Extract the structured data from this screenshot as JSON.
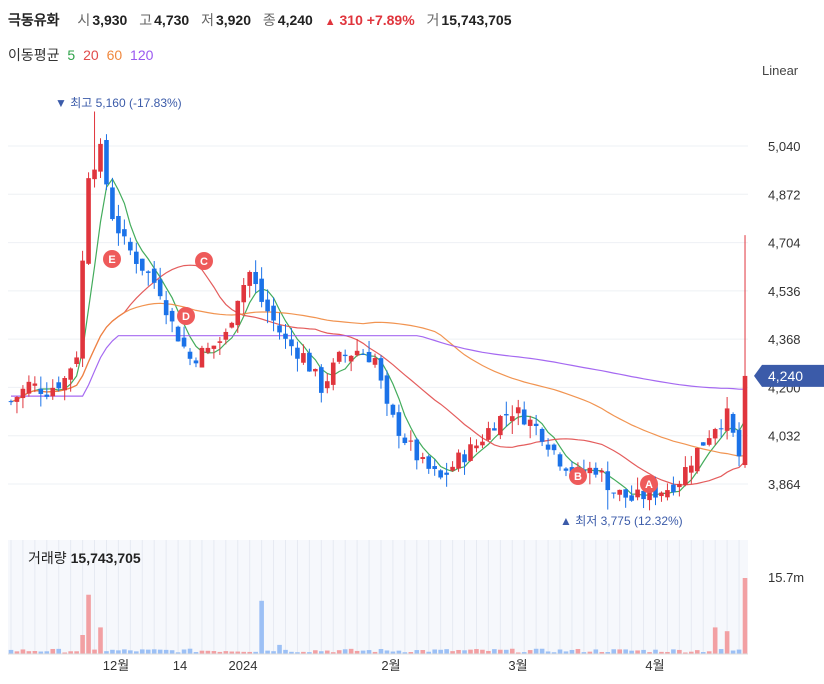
{
  "header": {
    "name": "극동유화",
    "open_label": "시",
    "open": "3,930",
    "high_label": "고",
    "high": "4,730",
    "low_label": "저",
    "low": "3,920",
    "close_label": "종",
    "close": "4,240",
    "change_arrow": "▲",
    "change": "310",
    "change_pct": "+7.89%",
    "volume_label": "거",
    "volume": "15,743,705"
  },
  "ma_legend": {
    "label": "이동평균",
    "items": [
      {
        "period": "5",
        "color": "#2fa34a"
      },
      {
        "period": "20",
        "color": "#e14b4b"
      },
      {
        "period": "60",
        "color": "#f0883e"
      },
      {
        "period": "120",
        "color": "#9b59f0"
      }
    ]
  },
  "scale_mode": "Linear",
  "colors": {
    "up": "#e0353d",
    "down": "#1b72e8",
    "price_tag": "#3b5ba9"
  },
  "annotations": {
    "high": {
      "arrow": "▼",
      "label": "최고",
      "value": "5,160 (-17.83%)"
    },
    "low": {
      "arrow": "▲",
      "label": "최저",
      "value": "3,775 (12.32%)"
    },
    "markers": [
      "E",
      "C",
      "D",
      "B",
      "A"
    ]
  },
  "volume_panel": {
    "label": "거래량",
    "value": "15,743,705",
    "axis_label": "15.7m"
  },
  "chart_data": {
    "type": "candlestick",
    "y_ticks": [
      "5,040",
      "4,872",
      "4,704",
      "4,536",
      "4,368",
      "4,200",
      "4,032",
      "3,864"
    ],
    "y_tick_values": [
      5040,
      4872,
      4704,
      4536,
      4368,
      4200,
      4032,
      3864
    ],
    "current_price_label": "4,240",
    "current_price": 4240,
    "x_ticks": [
      "12월",
      "14",
      "2024",
      "2월",
      "3월",
      "4월"
    ],
    "ylim": [
      3760,
      5180
    ],
    "volume_max": 15743705
  }
}
